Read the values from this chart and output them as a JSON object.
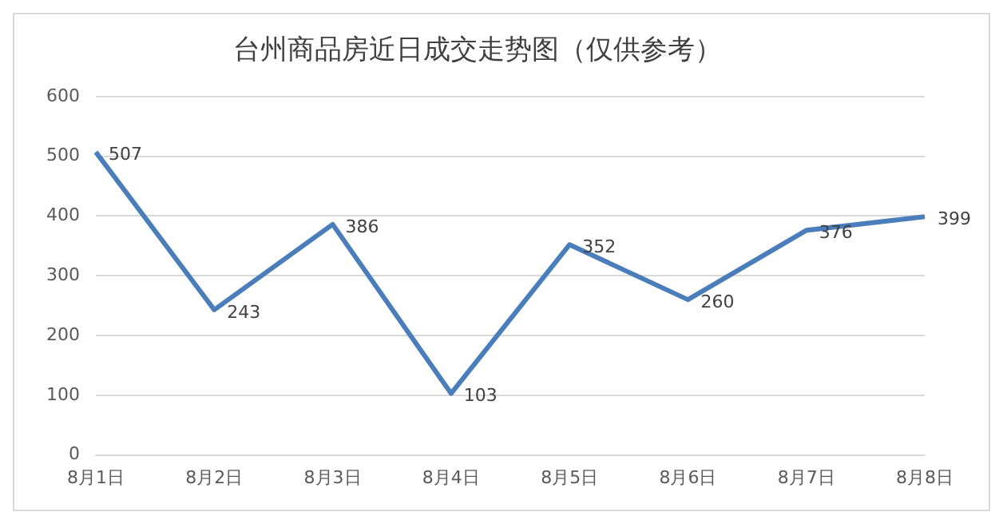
{
  "chart_data": {
    "type": "line",
    "title": "台州商品房近日成交走势图（仅供参考）",
    "categories": [
      "8月1日",
      "8月2日",
      "8月3日",
      "8月4日",
      "8月5日",
      "8月6日",
      "8月7日",
      "8月8日"
    ],
    "series": [
      {
        "color": "#4a7ebb",
        "values": [
          507,
          243,
          386,
          103,
          352,
          260,
          376,
          399
        ]
      }
    ],
    "ylim": [
      0,
      600
    ],
    "yticks": [
      0,
      100,
      200,
      300,
      400,
      500,
      600
    ],
    "grid": "y",
    "legend": false,
    "marker": "none",
    "line_style": "solid",
    "data_labels": true
  }
}
